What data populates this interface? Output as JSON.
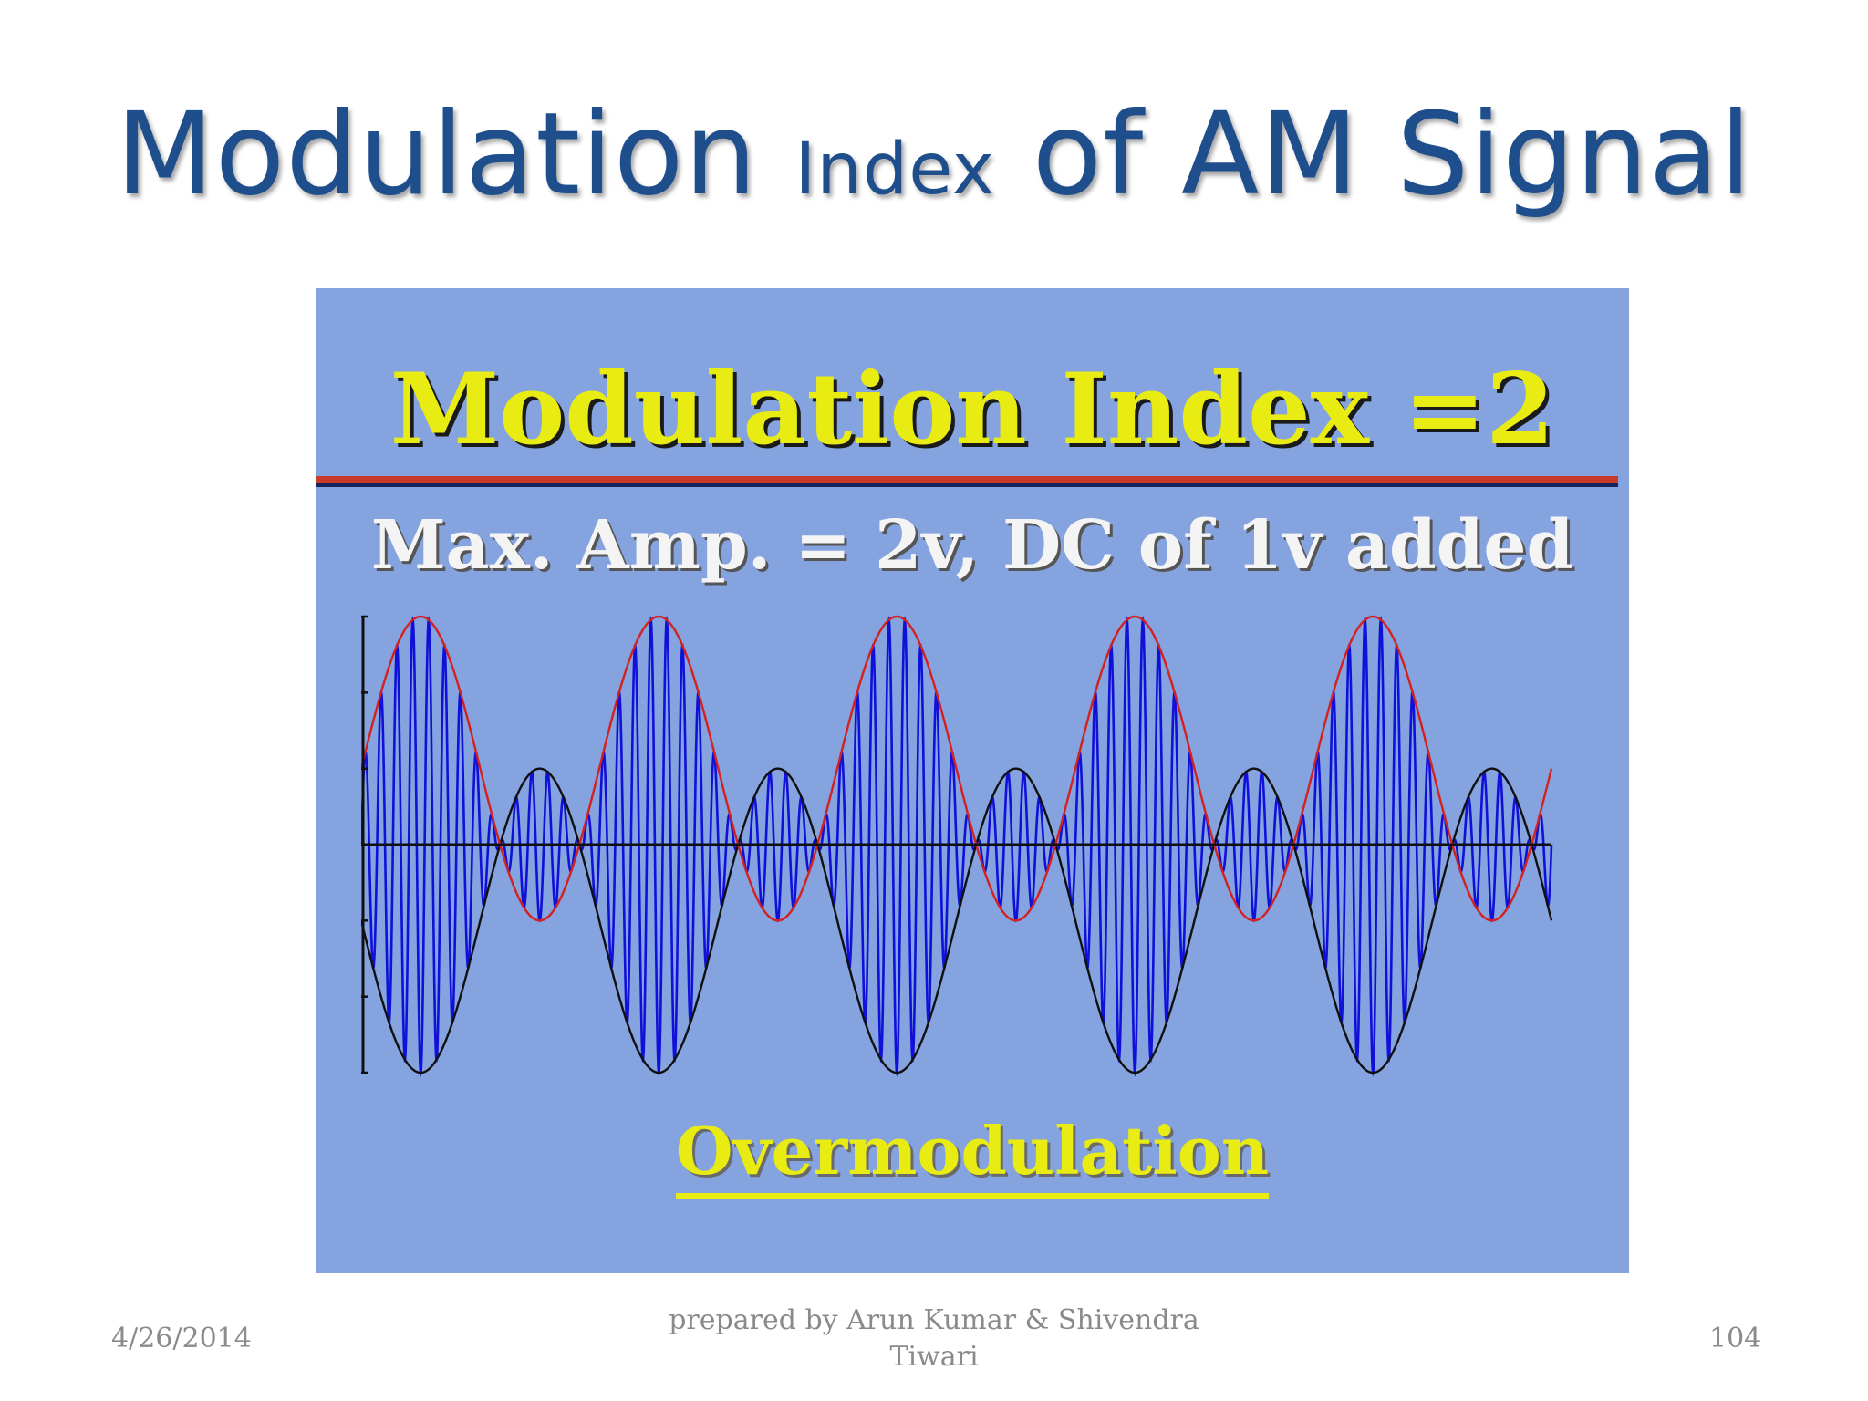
{
  "slide": {
    "title_part1": "Modulation",
    "title_part2": "Index",
    "title_part3": "of AM Signal"
  },
  "panel": {
    "title": "Modulation Index =2",
    "subtitle": "Max. Amp. = 2v, DC of 1v added",
    "caption": "Overmodulation"
  },
  "footer": {
    "date": "4/26/2014",
    "author_line1": "prepared by Arun Kumar & Shivendra",
    "author_line2": "Tiwari",
    "page": "104"
  },
  "chart_data": {
    "type": "line",
    "title": "",
    "xlabel": "",
    "ylabel": "",
    "ylim": [
      -3,
      3
    ],
    "yticks": [
      3,
      2,
      1,
      0,
      -1,
      -2,
      -3
    ],
    "grid": false,
    "modulating_cycles": 5,
    "carrier_cycles": 75,
    "dc_offset": 1,
    "modulation_index": 2,
    "series": [
      {
        "role": "upper-envelope",
        "expression": "1 + 2*sin(wm*t)",
        "color": "#d42020"
      },
      {
        "role": "lower-envelope",
        "expression": "-(1 + 2*sin(wm*t))",
        "color": "#101010"
      },
      {
        "role": "am-signal",
        "expression": "(1 + 2*sin(wm*t)) * sin(wc*t)",
        "color": "#1010d8"
      }
    ],
    "axis_color": "#101010"
  }
}
